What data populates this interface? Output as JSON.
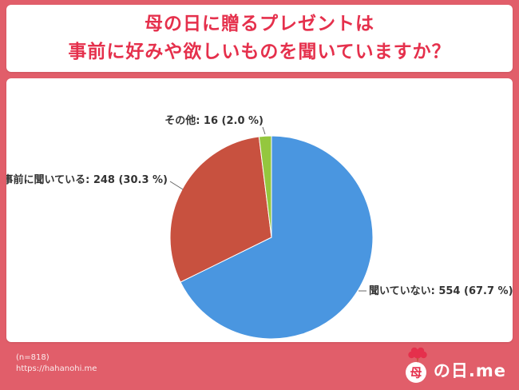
{
  "page": {
    "title_line1": "母の日に贈るプレゼントは",
    "title_line2": "事前に好みや欲しいものを聞いていますか？",
    "footer": {
      "sample_size": "(n=818)",
      "url": "https://hahanohi.me"
    },
    "logo": {
      "circle_char": "母",
      "text": "の日.me"
    }
  },
  "colors": {
    "background": "#E15E6A",
    "title_text": "#E5304C",
    "panel": "#FFFFFF",
    "label_text": "#333333",
    "leader_line": "#666666",
    "footer_text": "rgba(255,255,255,0.88)",
    "logo_red": "#E5304C"
  },
  "chart_data": {
    "type": "pie",
    "title": "",
    "labels": [
      "聞いていない",
      "事前に聞いている",
      "その他"
    ],
    "values": [
      554,
      248,
      16
    ],
    "percents": [
      67.7,
      30.3,
      2.0
    ],
    "total_n": 818,
    "start_angle": "top",
    "direction": "clockwise",
    "slices": [
      {
        "label": "聞いていない",
        "value": 554,
        "percent": 67.7,
        "display": "聞いていない: 554 (67.7 %)",
        "color": "#4A96E0"
      },
      {
        "label": "事前に聞いている",
        "value": 248,
        "percent": 30.3,
        "display": "事前に聞いている: 248 (30.3 %)",
        "color": "#C8513F"
      },
      {
        "label": "その他",
        "value": 16,
        "percent": 2.0,
        "display": "その他: 16 (2.0 %)",
        "color": "#94C73E"
      }
    ]
  }
}
